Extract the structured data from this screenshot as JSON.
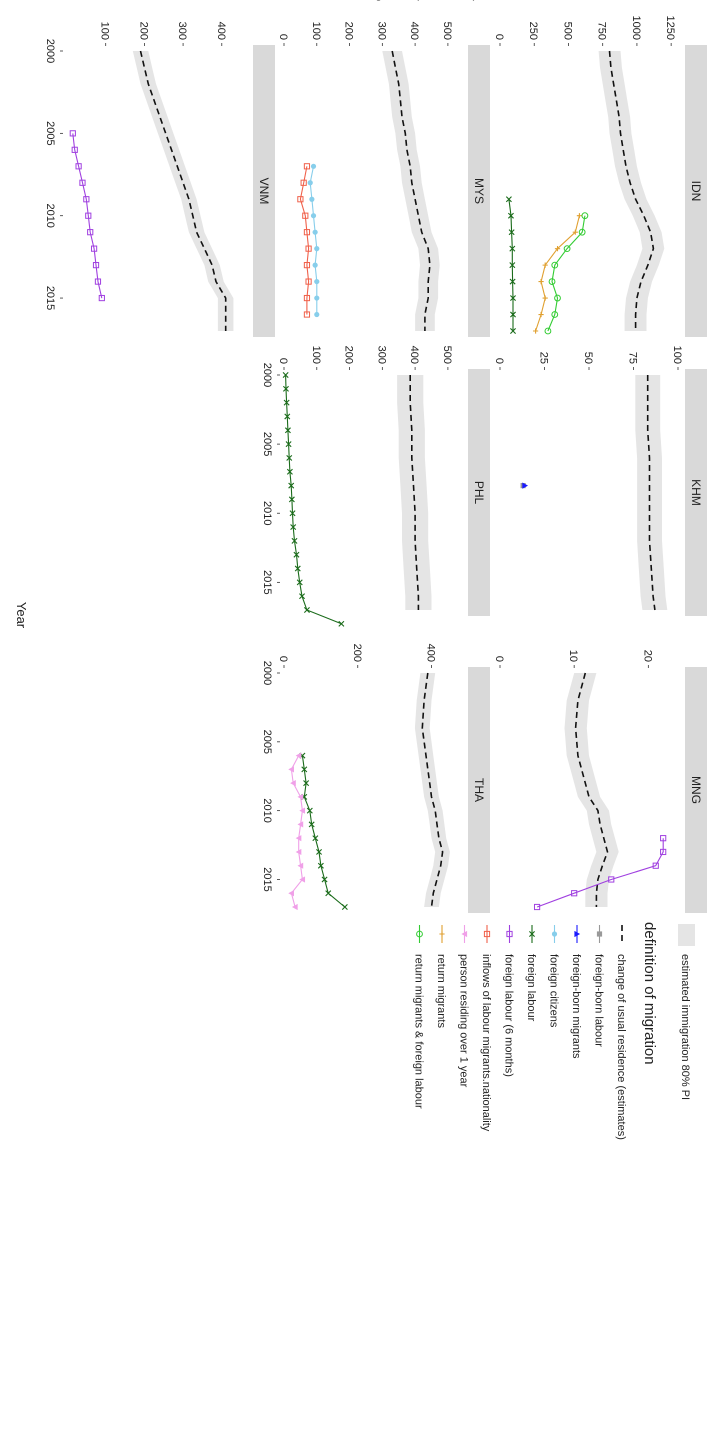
{
  "chart_data": {
    "type": "line",
    "orientation": "rotated 90 degrees clockwise",
    "xlabel": "Year",
    "ylabel": "Number of Migrants (thousand)",
    "x_ticks": [
      2000,
      2005,
      2010,
      2015
    ],
    "xlim": [
      2000,
      2017
    ],
    "legend": {
      "band_label": "estimated immigration 80% PI",
      "title": "definition of migration",
      "placement": "right",
      "items": [
        {
          "label": "change of usual residence (estimates)",
          "color": "#000000",
          "shape": "dash"
        },
        {
          "label": "foreign-born labour",
          "color": "#999999",
          "shape": "square"
        },
        {
          "label": "foreign-born migrants",
          "color": "#1a1aff",
          "shape": "triangle"
        },
        {
          "label": "foreign citizens",
          "color": "#87ceeb",
          "shape": "circle"
        },
        {
          "label": "foreign labour",
          "color": "#1a6b1a",
          "shape": "cross"
        },
        {
          "label": "foreign labour (6 months)",
          "color": "#a040e0",
          "shape": "open-square"
        },
        {
          "label": "inflows of labour migrants.nationality",
          "color": "#f0604a",
          "shape": "open-square"
        },
        {
          "label": "person residing over 1 year",
          "color": "#f0a0e8",
          "shape": "triangle-down"
        },
        {
          "label": "return migrants",
          "color": "#e0a030",
          "shape": "plus"
        },
        {
          "label": "return migrants & foreign labour",
          "color": "#33cc33",
          "shape": "open-circle"
        }
      ]
    },
    "panels": [
      {
        "title": "IDN",
        "ylim": [
          0,
          1300
        ],
        "y_ticks": [
          0,
          250,
          500,
          750,
          1000,
          1250
        ],
        "estimate": {
          "x": [
            2000,
            2001,
            2002,
            2003,
            2004,
            2005,
            2006,
            2007,
            2008,
            2009,
            2010,
            2011,
            2012,
            2013,
            2014,
            2015,
            2016,
            2017
          ],
          "mid": [
            800,
            810,
            830,
            850,
            870,
            880,
            900,
            920,
            950,
            990,
            1050,
            1100,
            1120,
            1080,
            1030,
            1000,
            990,
            990
          ],
          "lo": [
            720,
            730,
            750,
            770,
            790,
            800,
            820,
            840,
            870,
            910,
            970,
            1020,
            1040,
            1000,
            950,
            920,
            910,
            910
          ],
          "hi": [
            880,
            890,
            910,
            930,
            950,
            960,
            980,
            1000,
            1030,
            1070,
            1130,
            1180,
            1200,
            1160,
            1110,
            1080,
            1070,
            1070
          ]
        },
        "series": [
          {
            "name": "foreign labour",
            "x": [
              2009,
              2010,
              2011,
              2012,
              2013,
              2014,
              2015,
              2016,
              2017
            ],
            "y": [
              65,
              80,
              85,
              90,
              90,
              92,
              95,
              95,
              95
            ]
          },
          {
            "name": "return migrants",
            "x": [
              2010,
              2011,
              2012,
              2013,
              2014,
              2015,
              2016,
              2017
            ],
            "y": [
              580,
              550,
              420,
              330,
              300,
              330,
              300,
              260
            ]
          },
          {
            "name": "return migrants & foreign labour",
            "x": [
              2010,
              2011,
              2012,
              2013,
              2014,
              2015,
              2016,
              2017
            ],
            "y": [
              620,
              600,
              490,
              400,
              380,
              420,
              400,
              350
            ]
          }
        ]
      },
      {
        "title": "KHM",
        "ylim": [
          0,
          100
        ],
        "y_ticks": [
          0,
          25,
          50,
          75,
          100
        ],
        "estimate": {
          "x": [
            2000,
            2002,
            2004,
            2006,
            2008,
            2010,
            2012,
            2014,
            2016,
            2017
          ],
          "mid": [
            83,
            83,
            83,
            84,
            84,
            84,
            84,
            85,
            86,
            87
          ],
          "lo": [
            76,
            76,
            76,
            77,
            77,
            77,
            77,
            78,
            79,
            80
          ],
          "hi": [
            90,
            90,
            90,
            91,
            91,
            91,
            91,
            92,
            93,
            94
          ]
        },
        "series": [
          {
            "name": "foreign-born labour",
            "x": [
              2008
            ],
            "y": [
              13
            ]
          },
          {
            "name": "foreign-born migrants",
            "x": [
              2008
            ],
            "y": [
              14
            ]
          }
        ]
      },
      {
        "title": "MNG",
        "ylim": [
          0,
          24
        ],
        "y_ticks": [
          0,
          10,
          20
        ],
        "estimate": {
          "x": [
            2000,
            2002,
            2004,
            2006,
            2008,
            2009,
            2010,
            2011,
            2012,
            2013,
            2014,
            2015,
            2016,
            2017
          ],
          "mid": [
            11.5,
            10.5,
            10.2,
            10.5,
            11.5,
            12,
            13.2,
            13.5,
            14,
            14.5,
            13.8,
            13.2,
            13,
            13
          ],
          "lo": [
            10,
            9,
            8.7,
            9,
            10,
            10.5,
            11.7,
            12,
            12.5,
            13,
            12.3,
            11.7,
            11.5,
            11.5
          ],
          "hi": [
            13,
            12,
            11.7,
            12,
            13,
            13.5,
            14.7,
            15,
            15.5,
            16,
            15.3,
            14.7,
            14.5,
            14.5
          ]
        },
        "series": [
          {
            "name": "foreign labour (6 months)",
            "x": [
              2012,
              2013,
              2014,
              2015,
              2016,
              2017
            ],
            "y": [
              22,
              22,
              21,
              15,
              10,
              5
            ]
          }
        ]
      },
      {
        "title": "MYS",
        "ylim": [
          0,
          540
        ],
        "y_ticks": [
          0,
          100,
          200,
          300,
          400,
          500
        ],
        "estimate": {
          "x": [
            2000,
            2001,
            2002,
            2003,
            2004,
            2005,
            2006,
            2007,
            2008,
            2009,
            2010,
            2011,
            2012,
            2013,
            2014,
            2015,
            2016,
            2017
          ],
          "mid": [
            330,
            340,
            350,
            355,
            360,
            370,
            375,
            385,
            390,
            400,
            410,
            420,
            440,
            445,
            440,
            440,
            430,
            430
          ],
          "lo": [
            300,
            310,
            320,
            325,
            330,
            340,
            345,
            355,
            360,
            370,
            380,
            390,
            410,
            415,
            410,
            410,
            400,
            400
          ],
          "hi": [
            360,
            370,
            380,
            385,
            390,
            400,
            405,
            415,
            420,
            430,
            440,
            450,
            470,
            475,
            470,
            470,
            460,
            460
          ]
        },
        "series": [
          {
            "name": "foreign citizens",
            "x": [
              2007,
              2008,
              2009,
              2010,
              2011,
              2012,
              2013,
              2014,
              2015,
              2016
            ],
            "y": [
              90,
              80,
              85,
              90,
              95,
              100,
              95,
              100,
              100,
              100
            ]
          },
          {
            "name": "inflows of labour migrants.nationality",
            "x": [
              2007,
              2008,
              2009,
              2010,
              2011,
              2012,
              2013,
              2014,
              2015,
              2016
            ],
            "y": [
              70,
              60,
              50,
              65,
              70,
              75,
              70,
              75,
              70,
              70
            ]
          }
        ]
      },
      {
        "title": "PHL",
        "ylim": [
          0,
          540
        ],
        "y_ticks": [
          0,
          100,
          200,
          300,
          400,
          500
        ],
        "estimate": {
          "x": [
            2000,
            2002,
            2004,
            2006,
            2008,
            2010,
            2012,
            2014,
            2016,
            2017
          ],
          "mid": [
            385,
            385,
            390,
            390,
            395,
            400,
            400,
            405,
            410,
            410
          ],
          "lo": [
            345,
            345,
            350,
            350,
            355,
            360,
            360,
            365,
            370,
            370
          ],
          "hi": [
            425,
            425,
            430,
            430,
            435,
            440,
            440,
            445,
            450,
            450
          ]
        },
        "series": [
          {
            "name": "foreign labour",
            "x": [
              2000,
              2001,
              2002,
              2003,
              2004,
              2005,
              2006,
              2007,
              2008,
              2009,
              2010,
              2011,
              2012,
              2013,
              2014,
              2015,
              2016,
              2017,
              2018
            ],
            "y": [
              5,
              6,
              8,
              10,
              12,
              14,
              16,
              18,
              22,
              24,
              26,
              28,
              32,
              38,
              42,
              48,
              55,
              70,
              175
            ]
          }
        ]
      },
      {
        "title": "THA",
        "ylim": [
          0,
          480
        ],
        "y_ticks": [
          0,
          200,
          400
        ],
        "estimate": {
          "x": [
            2000,
            2002,
            2004,
            2006,
            2008,
            2009,
            2010,
            2011,
            2012,
            2013,
            2014,
            2015,
            2016,
            2017
          ],
          "mid": [
            390,
            380,
            375,
            385,
            395,
            400,
            410,
            415,
            420,
            430,
            425,
            415,
            405,
            400
          ],
          "lo": [
            370,
            360,
            355,
            365,
            375,
            380,
            390,
            395,
            400,
            410,
            405,
            395,
            385,
            380
          ],
          "hi": [
            410,
            400,
            395,
            405,
            415,
            420,
            430,
            435,
            440,
            450,
            445,
            435,
            425,
            420
          ]
        },
        "series": [
          {
            "name": "foreign labour",
            "x": [
              2006,
              2007,
              2008,
              2009,
              2010,
              2011,
              2012,
              2013,
              2014,
              2015,
              2016,
              2017
            ],
            "y": [
              50,
              55,
              60,
              55,
              70,
              75,
              85,
              95,
              100,
              110,
              120,
              165
            ]
          },
          {
            "name": "person residing over 1 year",
            "x": [
              2006,
              2007,
              2008,
              2009,
              2010,
              2011,
              2012,
              2013,
              2014,
              2015,
              2016,
              2017
            ],
            "y": [
              40,
              20,
              25,
              45,
              50,
              45,
              40,
              40,
              45,
              50,
              20,
              30
            ]
          }
        ]
      },
      {
        "title": "VNM",
        "ylim": [
          0,
          460
        ],
        "y_ticks": [
          100,
          200,
          300,
          400
        ],
        "x_ticks": [
          2000,
          2005,
          2010,
          2015
        ],
        "estimate": {
          "x": [
            2000,
            2001,
            2002,
            2003,
            2004,
            2005,
            2006,
            2007,
            2008,
            2009,
            2010,
            2011,
            2012,
            2013,
            2014,
            2015,
            2016,
            2017
          ],
          "mid": [
            190,
            200,
            210,
            225,
            240,
            255,
            270,
            285,
            300,
            315,
            325,
            335,
            355,
            375,
            385,
            410,
            410,
            410
          ],
          "lo": [
            170,
            180,
            190,
            205,
            220,
            235,
            250,
            265,
            280,
            295,
            305,
            315,
            335,
            355,
            365,
            390,
            390,
            390
          ],
          "hi": [
            210,
            220,
            230,
            245,
            260,
            275,
            290,
            305,
            320,
            335,
            345,
            355,
            375,
            395,
            405,
            430,
            430,
            430
          ]
        },
        "series": [
          {
            "name": "foreign labour (6 months)",
            "x": [
              2005,
              2006,
              2007,
              2008,
              2009,
              2010,
              2011,
              2012,
              2013,
              2014,
              2015
            ],
            "y": [
              15,
              20,
              30,
              40,
              50,
              55,
              60,
              70,
              75,
              80,
              90
            ]
          }
        ]
      }
    ]
  }
}
